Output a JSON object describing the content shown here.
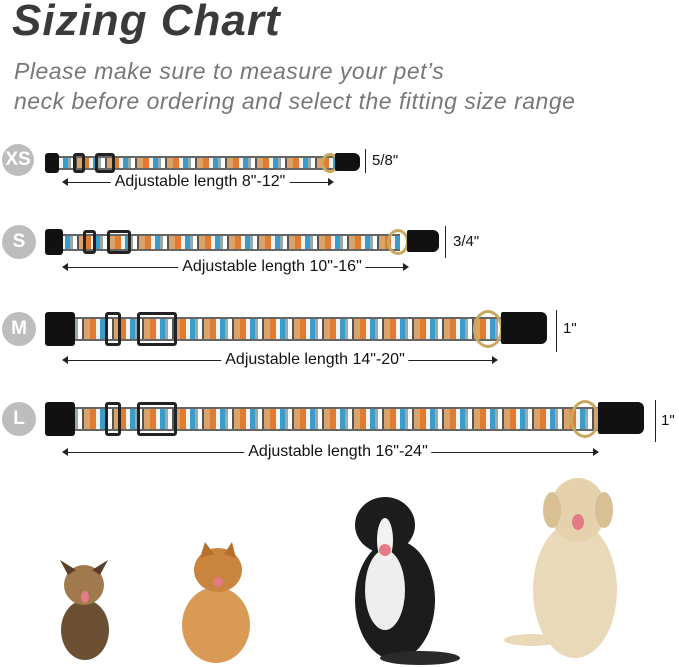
{
  "title": "Sizing Chart",
  "subtitle": [
    "Please make sure to measure your pet’s",
    "neck before ordering and select the fitting size range"
  ],
  "sizes": [
    {
      "label": "XS",
      "width": "5/8\"",
      "length": "Adjustable length 8\"-12\""
    },
    {
      "label": "S",
      "width": "3/4\"",
      "length": "Adjustable length 10\"-16\""
    },
    {
      "label": "M",
      "width": "1\"",
      "length": "Adjustable length 14\"-20\""
    },
    {
      "label": "L",
      "width": "1\"",
      "length": "Adjustable length 16\"-24\""
    }
  ],
  "colors": {
    "band_orange": "#e07b2f",
    "band_blue": "#3a9ccb",
    "badge": "#bdbdbd"
  },
  "dogs": [
    "yorkshire-terrier",
    "pomeranian",
    "border-collie",
    "golden-retriever"
  ]
}
